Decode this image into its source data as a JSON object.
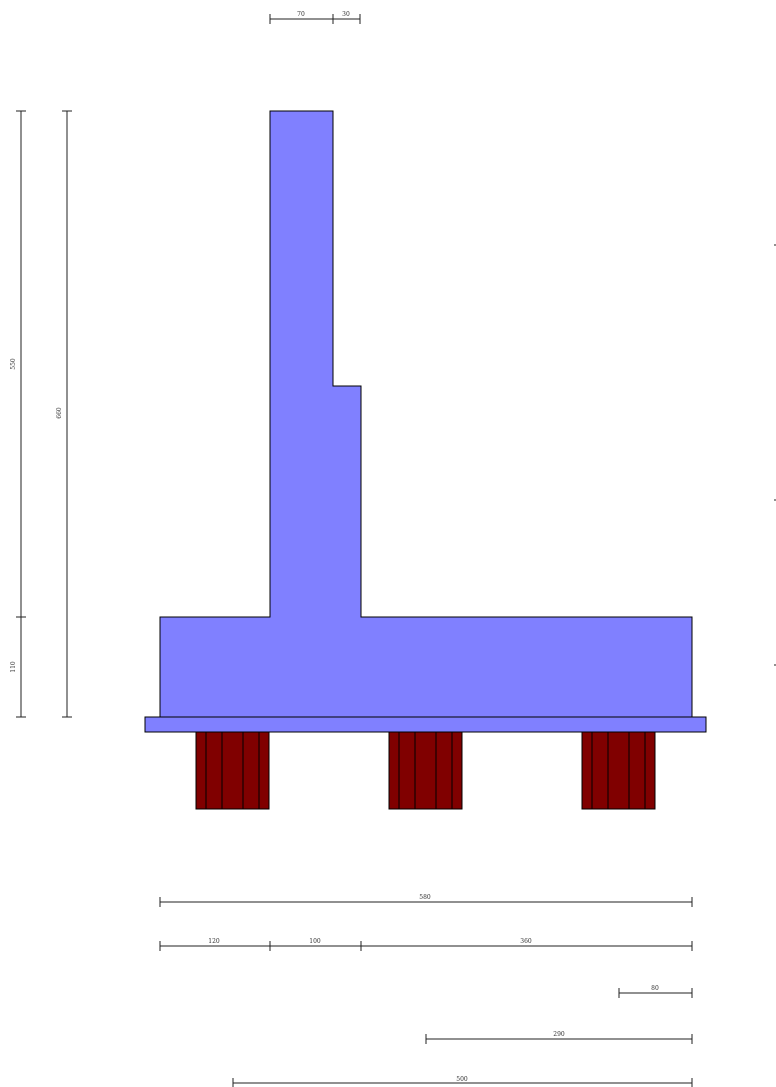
{
  "colors": {
    "concrete": "#8080ff",
    "outline": "#000000",
    "pile": "#800000",
    "pile_stripe": "#000000",
    "dimension": "#222222"
  },
  "top_dimensions": [
    "70",
    "30"
  ],
  "left_dimensions": [
    "550",
    "660",
    "110"
  ],
  "bottom_dimensions": {
    "row1": [
      "580"
    ],
    "row2": [
      "120",
      "100",
      "360"
    ],
    "row3": [
      "80"
    ],
    "row4": [
      "290"
    ],
    "row5": [
      "500"
    ]
  }
}
